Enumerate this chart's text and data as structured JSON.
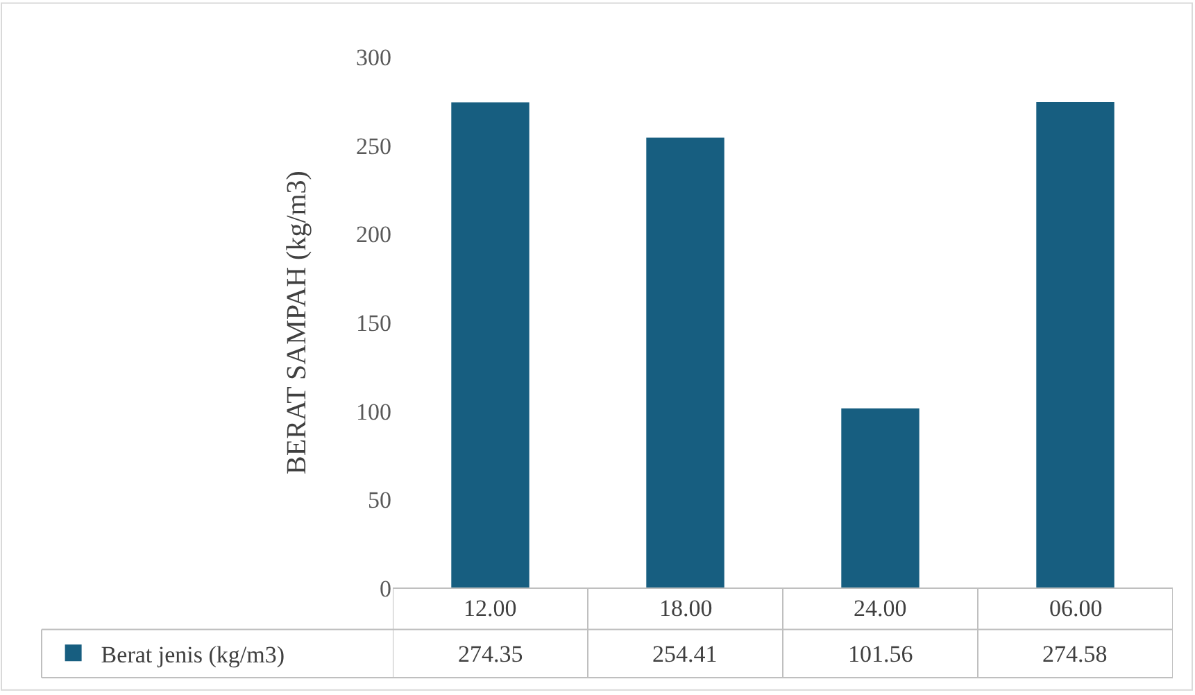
{
  "chart_data": {
    "type": "bar",
    "ylabel": "BERAT SAMPAH (kg/m3)",
    "categories": [
      "12.00",
      "18.00",
      "24.00",
      "06.00"
    ],
    "series": [
      {
        "name": "Berat jenis (kg/m3)",
        "color": "#175e80",
        "values": [
          274.35,
          254.41,
          101.56,
          274.58
        ]
      }
    ],
    "ylim": [
      0,
      300
    ],
    "yticks": [
      0,
      50,
      100,
      150,
      200,
      250,
      300
    ],
    "legend": "bottom left",
    "data_labels": true
  }
}
